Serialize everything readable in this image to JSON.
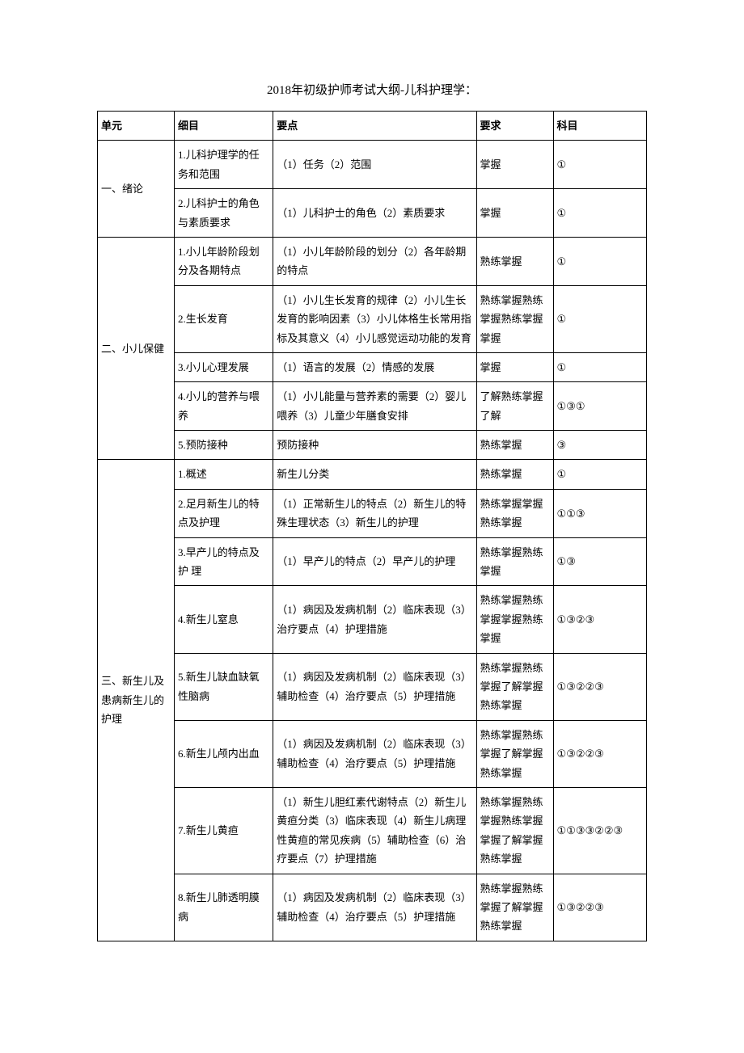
{
  "title": "2018年初级护师考试大纲-儿科护理学：",
  "columns": {
    "unit": "单元",
    "detail": "细目",
    "point": "要点",
    "req": "要求",
    "subj": "科目"
  },
  "units": [
    {
      "name": "一、绪论",
      "rows": [
        {
          "detail": "1.儿科护理学的任务和范围",
          "point": "（1）任务（2）范围",
          "req": "掌握",
          "subj": "①"
        },
        {
          "detail": "2.儿科护士的角色与素质要求",
          "point": "（1）儿科护士的角色（2）素质要求",
          "req": "掌握",
          "subj": "①"
        }
      ]
    },
    {
      "name": "二、小儿保健",
      "rows": [
        {
          "detail": "1.小儿年龄阶段划分及各期特点",
          "point": "（1）小儿年龄阶段的划分（2）各年龄期的特点",
          "req": "熟练掌握",
          "subj": "①"
        },
        {
          "detail": "2.生长发育",
          "point": "（1）小儿生长发育的规律（2）小儿生长发育的影响因素（3）小儿体格生长常用指标及其意义（4）小儿感觉运动功能的发育",
          "req": "熟练掌握熟练掌握熟练掌握掌握",
          "subj": "①"
        },
        {
          "detail": "3.小儿心理发展",
          "point": "（1）语言的发展（2）情感的发展",
          "req": "掌握",
          "subj": "①"
        },
        {
          "detail": "4.小儿的营养与喂养",
          "point": "（1）小儿能量与营养素的需要（2）婴儿喂养（3）儿童少年膳食安排",
          "req": "了解熟练掌握了解",
          "subj": "①③①"
        },
        {
          "detail": "5.预防接种",
          "point": "预防接种",
          "req": "熟练掌握",
          "subj": "③"
        }
      ]
    },
    {
      "name": "三、新生儿及患病新生儿的护理",
      "rows": [
        {
          "detail": "1.概述",
          "point": "新生儿分类",
          "req": "熟练掌握",
          "subj": "①"
        },
        {
          "detail": "2.足月新生儿的特点及护理",
          "point": "（1）正常新生儿的特点（2）新生儿的特殊生理状态（3）新生儿的护理",
          "req": "熟练掌握掌握熟练掌握",
          "subj": "①①③"
        },
        {
          "detail": "3.早产儿的特点及护 理",
          "point": "（1）早产儿的特点（2）早产儿的护理",
          "req": "熟练掌握熟练掌握",
          "subj": "①③"
        },
        {
          "detail": "4.新生儿窒息",
          "point": "（1）病因及发病机制（2）临床表现（3）治疗要点（4）护理措施",
          "req": "熟练掌握熟练掌握掌握熟练掌握",
          "subj": "①③②③"
        },
        {
          "detail": "5.新生儿缺血缺氧性脑病",
          "point": "（1）病因及发病机制（2）临床表现（3）辅助检查（4）治疗要点（5）护理措施",
          "req": "熟练掌握熟练掌握了解掌握熟练掌握",
          "subj": "①③②②③"
        },
        {
          "detail": "6.新生儿颅内出血",
          "point": "（1）病因及发病机制（2）临床表现（3）辅助检查（4）治疗要点（5）护理措施",
          "req": "熟练掌握熟练掌握了解掌握熟练掌握",
          "subj": "①③②②③"
        },
        {
          "detail": "7.新生儿黄疸",
          "point": "（1）新生儿胆红素代谢特点（2）新生儿黄疸分类（3）临床表现（4）新生儿病理性黄疸的常见疾病（5）辅助检查（6）治疗要点（7）护理措施",
          "req": "熟练掌握熟练掌握熟练掌握掌握了解掌握熟练掌握",
          "subj": "①①③③②②③"
        },
        {
          "detail": "8.新生儿肺透明膜病",
          "point": "（1）病因及发病机制（2）临床表现（3）辅助检查（4）治疗要点（5）护理措施",
          "req": "熟练掌握熟练掌握了解掌握熟练掌握",
          "subj": "①③②②③"
        }
      ]
    }
  ]
}
